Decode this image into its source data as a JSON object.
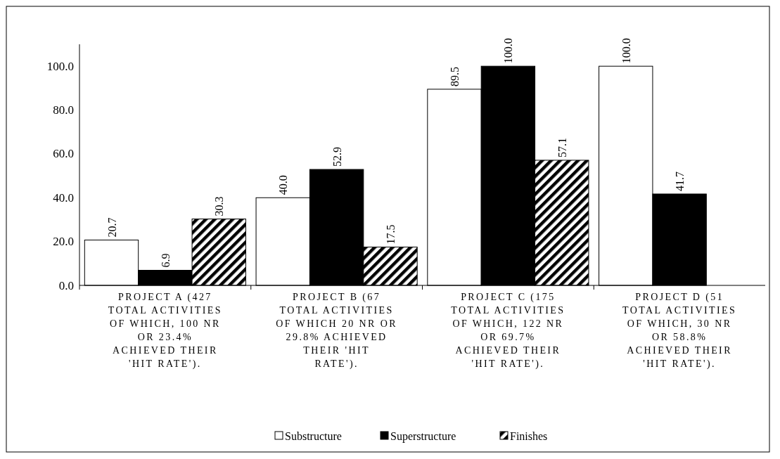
{
  "chart_data": {
    "type": "bar",
    "categories": [
      "PROJECT A (427 TOTAL ACTIVITIES OF WHICH, 100 NR OR 23.4% ACHIEVED THEIR 'HIT RATE').",
      "PROJECT B (67 TOTAL ACTIVITIES OF WHICH 20 NR OR 29.8% ACHIEVED THEIR 'HIT RATE').",
      "PROJECT C (175 TOTAL ACTIVITIES OF WHICH, 122 NR OR 69.7% ACHIEVED THEIR 'HIT RATE').",
      "PROJECT D (51 TOTAL ACTIVITIES OF WHICH, 30 NR OR 58.8% ACHIEVED THEIR 'HIT RATE')."
    ],
    "series": [
      {
        "name": "Substructure",
        "color": "#ffffff",
        "values": [
          20.7,
          40.0,
          89.5,
          100.0
        ],
        "value_labels": [
          "20.7",
          "40.0",
          "89.5",
          "100.0"
        ]
      },
      {
        "name": "Superstructure",
        "color": "#000000",
        "values": [
          6.9,
          52.9,
          100.0,
          41.7
        ],
        "value_labels": [
          "6.9",
          "52.9",
          "100.0",
          "41.7"
        ]
      },
      {
        "name": "Finishes",
        "color": "#000000",
        "values": [
          30.3,
          17.5,
          57.1,
          null
        ],
        "value_labels": [
          "30.3",
          "17.5",
          "57.1",
          null
        ]
      }
    ],
    "ylim": [
      0,
      110
    ],
    "yticks": [
      {
        "value": 0,
        "label": "0.0"
      },
      {
        "value": 20,
        "label": "20.0"
      },
      {
        "value": 40,
        "label": "40.0"
      },
      {
        "value": 60,
        "label": "60.0"
      },
      {
        "value": 80,
        "label": "80.0"
      },
      {
        "value": 100,
        "label": "100.0"
      }
    ],
    "grid": false,
    "legend": "bottom"
  }
}
